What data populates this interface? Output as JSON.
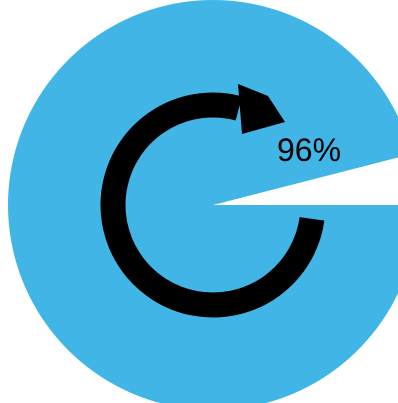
{
  "progress": {
    "percent_label": "96%",
    "value_percent": 96
  },
  "colors": {
    "fill": "#41b6e6",
    "arrow": "#000000",
    "background": "#ffffff"
  },
  "icons": {
    "center": "circular-arrow-icon"
  }
}
